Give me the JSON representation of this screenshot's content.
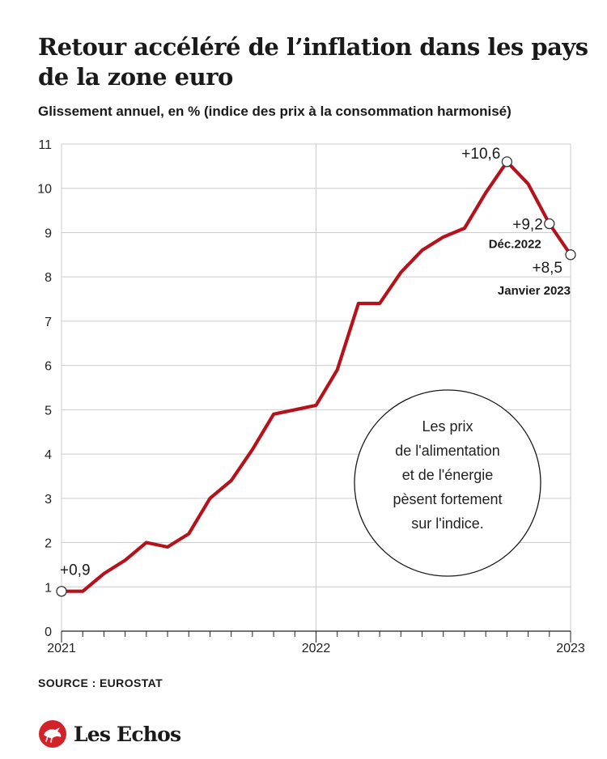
{
  "header": {
    "title": "Retour accéléré de l’inflation dans les pays de la zone euro",
    "subtitle": "Glissement annuel, en % (indice des prix à la consommation harmonisé)"
  },
  "chart_data": {
    "type": "line",
    "title": "Retour accéléré de l’inflation dans les pays de la zone euro",
    "subtitle": "Glissement annuel, en % (indice des prix à la consommation harmonisé)",
    "xlabel": "",
    "ylabel": "",
    "x_tick_labels": [
      "2021",
      "2022",
      "2023"
    ],
    "x_months": [
      "2021-01",
      "2021-02",
      "2021-03",
      "2021-04",
      "2021-05",
      "2021-06",
      "2021-07",
      "2021-08",
      "2021-09",
      "2021-10",
      "2021-11",
      "2021-12",
      "2022-01",
      "2022-02",
      "2022-03",
      "2022-04",
      "2022-05",
      "2022-06",
      "2022-07",
      "2022-08",
      "2022-09",
      "2022-10",
      "2022-11",
      "2022-12",
      "2023-01"
    ],
    "series": [
      {
        "color": "#b5121b",
        "values": [
          0.9,
          0.9,
          1.3,
          1.6,
          2.0,
          1.9,
          2.2,
          3.0,
          3.4,
          4.1,
          4.9,
          5.0,
          5.1,
          5.9,
          7.4,
          7.4,
          8.1,
          8.6,
          8.9,
          9.1,
          9.9,
          10.6,
          10.1,
          9.2,
          8.5
        ]
      }
    ],
    "ylim": [
      0,
      11
    ],
    "yticks": [
      "0",
      "1",
      "2",
      "3",
      "4",
      "5",
      "6",
      "7",
      "8",
      "9",
      "10",
      "11"
    ],
    "grid": true,
    "annotations": [
      {
        "label": "+0,9",
        "month": "2021-01"
      },
      {
        "label": "+10,6",
        "month": "2022-10"
      },
      {
        "label": "+9,2",
        "sublabel": "Déc.2022",
        "month": "2022-12"
      },
      {
        "label": "+8,5",
        "sublabel": "Janvier 2023",
        "month": "2023-01"
      }
    ],
    "callout": "Les prix de l'alimentation et de l'énergie pèsent fortement sur l'indice."
  },
  "footer": {
    "source": "SOURCE :  EUROSTAT",
    "brand": "Les Echos"
  },
  "colors": {
    "line": "#b5121b",
    "grid": "#cccccc",
    "brand": "#d2232a"
  }
}
